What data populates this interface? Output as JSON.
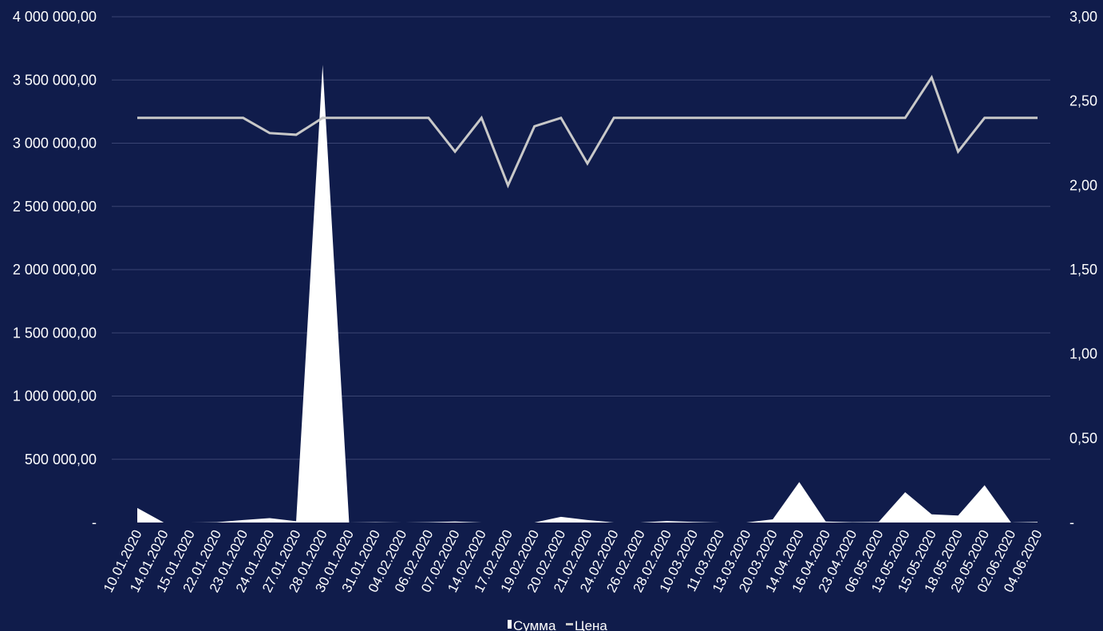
{
  "chart_data": {
    "type": "area",
    "title": "",
    "colors": {
      "background": "#101c4b",
      "gridline": "#3a4573",
      "area": "#ffffff",
      "line": "#c8c8c8",
      "text": "#ffffff"
    },
    "categories": [
      "10.01.2020",
      "14.01.2020",
      "15.01.2020",
      "22.01.2020",
      "23.01.2020",
      "24.01.2020",
      "27.01.2020",
      "28.01.2020",
      "30.01.2020",
      "31.01.2020",
      "04.02.2020",
      "06.02.2020",
      "07.02.2020",
      "14.02.2020",
      "17.02.2020",
      "19.02.2020",
      "20.02.2020",
      "21.02.2020",
      "24.02.2020",
      "26.02.2020",
      "28.02.2020",
      "10.03.2020",
      "11.03.2020",
      "13.03.2020",
      "20.03.2020",
      "14.04.2020",
      "16.04.2020",
      "23.04.2020",
      "06.05.2020",
      "13.05.2020",
      "15.05.2020",
      "18.05.2020",
      "29.05.2020",
      "02.06.2020",
      "04.06.2020"
    ],
    "y_axis_left": {
      "min": 0,
      "max": 4000000,
      "ticks": [
        0,
        500000,
        1000000,
        1500000,
        2000000,
        2500000,
        3000000,
        3500000,
        4000000
      ],
      "tick_labels": [
        "-",
        "500 000,00",
        "1 000 000,00",
        "1 500 000,00",
        "2 000 000,00",
        "2 500 000,00",
        "3 000 000,00",
        "3 500 000,00",
        "4 000 000,00"
      ]
    },
    "y_axis_right": {
      "min": 0,
      "max": 3,
      "ticks": [
        0,
        0.5,
        1,
        1.5,
        2,
        2.5,
        3
      ],
      "tick_labels": [
        "-",
        "0,50",
        "1,00",
        "1,50",
        "2,00",
        "2,50",
        "3,00"
      ]
    },
    "grid": true,
    "legend_position": "bottom",
    "series": [
      {
        "name": "Сумма",
        "type": "area",
        "axis": "left",
        "values": [
          115000,
          0,
          0,
          2000,
          20000,
          35000,
          10000,
          3620000,
          0,
          2000,
          0,
          2000,
          8000,
          0,
          0,
          0,
          45000,
          20000,
          0,
          0,
          12000,
          5000,
          0,
          0,
          25000,
          320000,
          8000,
          2000,
          5000,
          240000,
          65000,
          55000,
          295000,
          0,
          5000
        ]
      },
      {
        "name": "Цена",
        "type": "line",
        "axis": "right",
        "values": [
          2.4,
          2.4,
          2.4,
          2.4,
          2.4,
          2.31,
          2.3,
          2.4,
          2.4,
          2.4,
          2.4,
          2.4,
          2.2,
          2.4,
          2.0,
          2.35,
          2.4,
          2.13,
          2.4,
          2.4,
          2.4,
          2.4,
          2.4,
          2.4,
          2.4,
          2.4,
          2.4,
          2.4,
          2.4,
          2.4,
          2.64,
          2.2,
          2.4,
          2.4,
          2.4
        ]
      }
    ]
  }
}
